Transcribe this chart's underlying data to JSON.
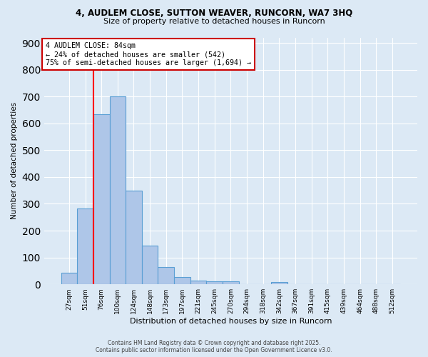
{
  "title_line1": "4, AUDLEM CLOSE, SUTTON WEAVER, RUNCORN, WA7 3HQ",
  "title_line2": "Size of property relative to detached houses in Runcorn",
  "xlabel": "Distribution of detached houses by size in Runcorn",
  "ylabel": "Number of detached properties",
  "categories": [
    "27sqm",
    "51sqm",
    "76sqm",
    "100sqm",
    "124sqm",
    "148sqm",
    "173sqm",
    "197sqm",
    "221sqm",
    "245sqm",
    "270sqm",
    "294sqm",
    "318sqm",
    "342sqm",
    "367sqm",
    "391sqm",
    "415sqm",
    "439sqm",
    "464sqm",
    "488sqm",
    "512sqm"
  ],
  "values": [
    42,
    283,
    633,
    700,
    350,
    145,
    65,
    28,
    14,
    11,
    11,
    0,
    0,
    8,
    0,
    0,
    0,
    0,
    0,
    0,
    0
  ],
  "bar_color": "#aec6e8",
  "bar_edge_color": "#5a9fd4",
  "background_color": "#dce9f5",
  "grid_color": "#ffffff",
  "red_line_x": 1.5,
  "annotation_title": "4 AUDLEM CLOSE: 84sqm",
  "annotation_line1": "← 24% of detached houses are smaller (542)",
  "annotation_line2": "75% of semi-detached houses are larger (1,694) →",
  "annotation_box_color": "#ffffff",
  "annotation_border_color": "#cc0000",
  "footer_line1": "Contains HM Land Registry data © Crown copyright and database right 2025.",
  "footer_line2": "Contains public sector information licensed under the Open Government Licence v3.0.",
  "ylim": [
    0,
    920
  ],
  "yticks": [
    0,
    100,
    200,
    300,
    400,
    500,
    600,
    700,
    800,
    900
  ]
}
